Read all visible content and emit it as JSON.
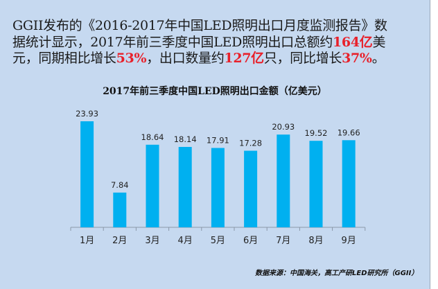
{
  "intro": {
    "line1": "GGII发布的《2016-2017年中国LED照明出口月度监测报告》数",
    "line2_a": "据统计显示，2017年前三季度中国LED照明出口总额约",
    "line2_hl": "164亿",
    "line2_b": "美",
    "line3_a": "元，同期相比增长",
    "line3_hl1": "53%",
    "line3_b": "，出口数量约",
    "line3_hl2": "127亿",
    "line3_c": "只，同比增长",
    "line3_hl3": "37%",
    "line3_d": "。"
  },
  "chart_data": {
    "type": "bar",
    "title": "2017年前三季度中国LED照明出口金额（亿美元）",
    "categories": [
      "1月",
      "2月",
      "3月",
      "4月",
      "5月",
      "6月",
      "7月",
      "8月",
      "9月"
    ],
    "values": [
      23.93,
      7.84,
      18.64,
      18.14,
      17.91,
      17.28,
      20.93,
      19.52,
      19.66
    ],
    "data_labels": [
      "23.93",
      "7.84",
      "18.64",
      "18.14",
      "17.91",
      "17.28",
      "20.93",
      "19.52",
      "19.66"
    ],
    "ylim": [
      0,
      24
    ],
    "grid": false,
    "bar_color": "#00b0f0"
  },
  "source": "数据来源：中国海关，高工产研LED研究所（GGII）",
  "colors": {
    "background": "#c6d9f0",
    "highlight": "#e8202a"
  }
}
